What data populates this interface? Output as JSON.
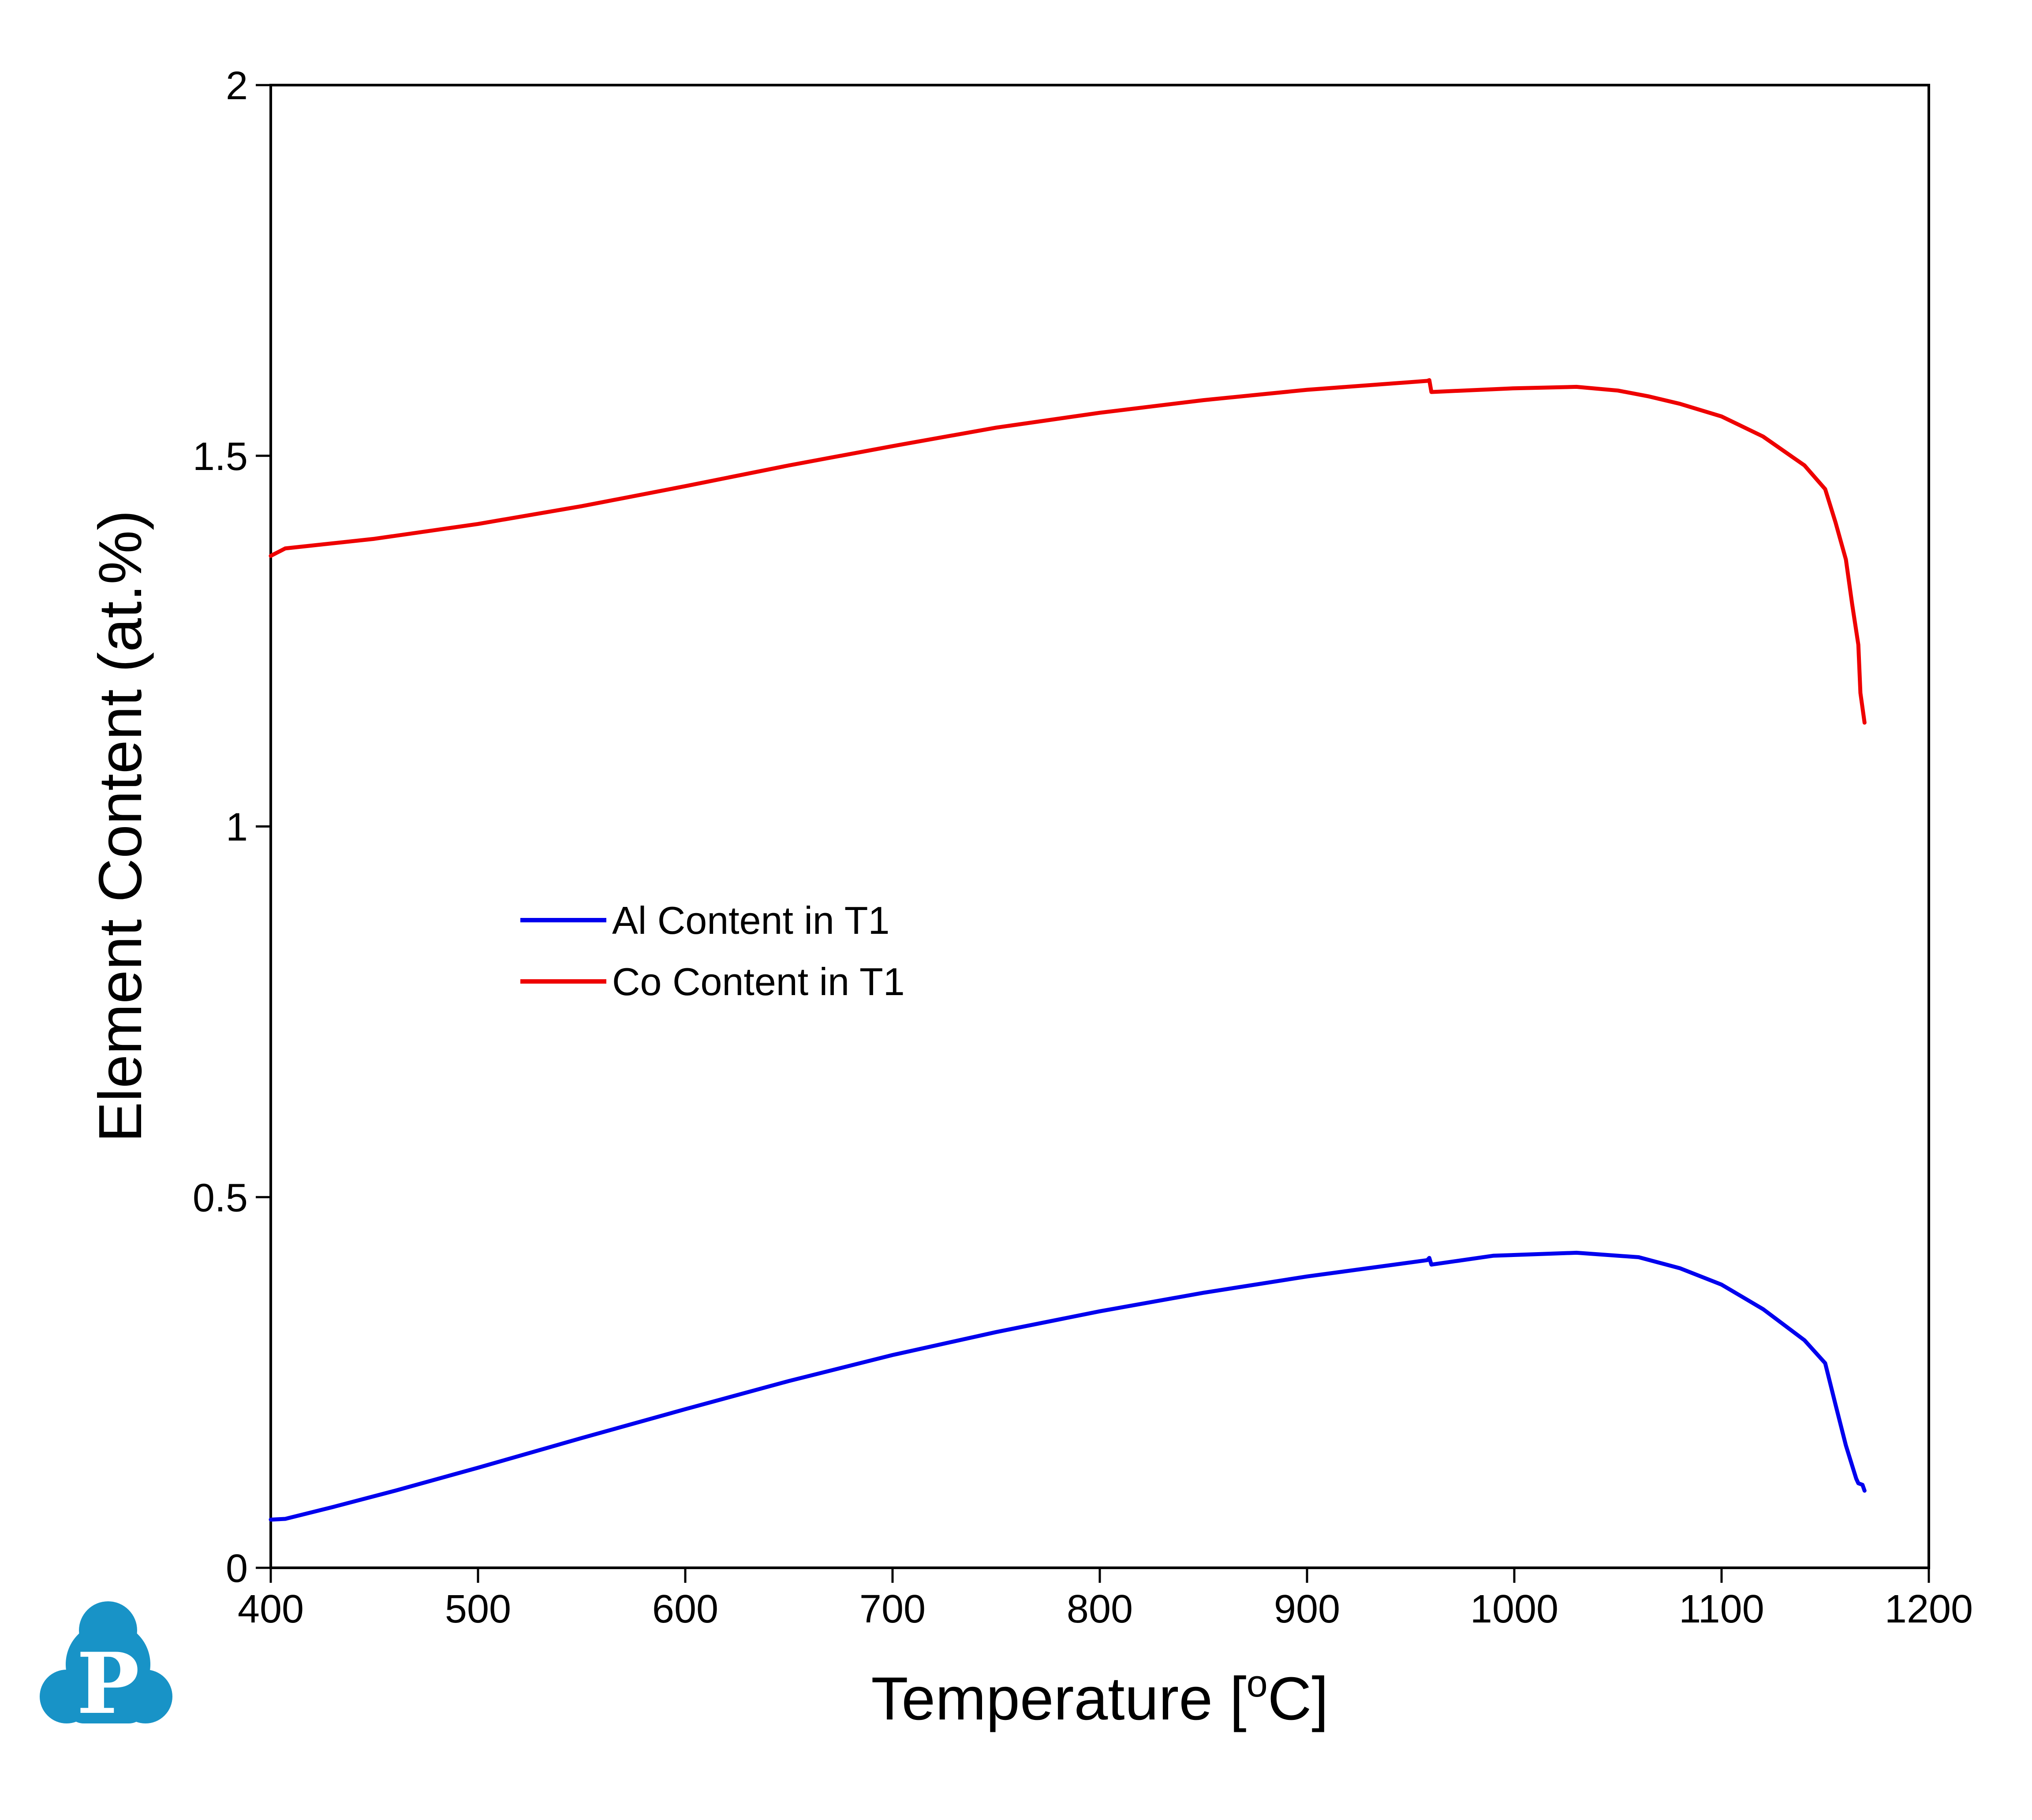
{
  "chart_data": {
    "type": "line",
    "xlabel": "Temperature [°C]",
    "xlabel_parts": {
      "pre": "Temperature [",
      "sup": "o",
      "post": "C]"
    },
    "ylabel": "Element Content (at.%)",
    "xlim": [
      400,
      1200
    ],
    "ylim": [
      0,
      2
    ],
    "x_ticks": [
      400,
      500,
      600,
      700,
      800,
      900,
      1000,
      1100,
      1200
    ],
    "x_tick_labels": [
      "400",
      "500",
      "600",
      "700",
      "800",
      "900",
      "1000",
      "1100",
      "1200"
    ],
    "y_ticks": [
      0,
      0.5,
      1,
      1.5,
      2
    ],
    "y_tick_labels": [
      "0",
      "0.5",
      "1",
      "1.5",
      "2"
    ],
    "grid": false,
    "legend_position": "center-left",
    "series": [
      {
        "name": "Al Content in T1",
        "color": "#0000ee",
        "x": [
          400,
          407,
          430,
          460,
          500,
          550,
          600,
          650,
          700,
          750,
          800,
          850,
          900,
          958,
          959,
          960,
          990,
          1030,
          1060,
          1080,
          1100,
          1120,
          1140,
          1150,
          1155,
          1160,
          1165,
          1166,
          1168,
          1169
        ],
        "y": [
          0.065,
          0.066,
          0.082,
          0.104,
          0.135,
          0.175,
          0.214,
          0.252,
          0.287,
          0.318,
          0.346,
          0.371,
          0.393,
          0.415,
          0.418,
          0.409,
          0.421,
          0.425,
          0.419,
          0.404,
          0.382,
          0.349,
          0.307,
          0.276,
          0.22,
          0.165,
          0.12,
          0.114,
          0.112,
          0.104
        ]
      },
      {
        "name": "Co Content in T1",
        "color": "#ee0000",
        "x": [
          400,
          407,
          450,
          500,
          550,
          600,
          650,
          700,
          750,
          800,
          850,
          900,
          958,
          959,
          960,
          1000,
          1030,
          1050,
          1065,
          1080,
          1100,
          1120,
          1140,
          1150,
          1155,
          1160,
          1163,
          1166,
          1167,
          1169
        ],
        "y": [
          1.365,
          1.375,
          1.388,
          1.408,
          1.432,
          1.459,
          1.487,
          1.513,
          1.538,
          1.558,
          1.575,
          1.589,
          1.601,
          1.602,
          1.586,
          1.591,
          1.593,
          1.588,
          1.58,
          1.57,
          1.553,
          1.526,
          1.487,
          1.455,
          1.41,
          1.36,
          1.3,
          1.245,
          1.18,
          1.14
        ]
      }
    ]
  },
  "logo": {
    "letter": "P",
    "color": "#1893c7"
  }
}
